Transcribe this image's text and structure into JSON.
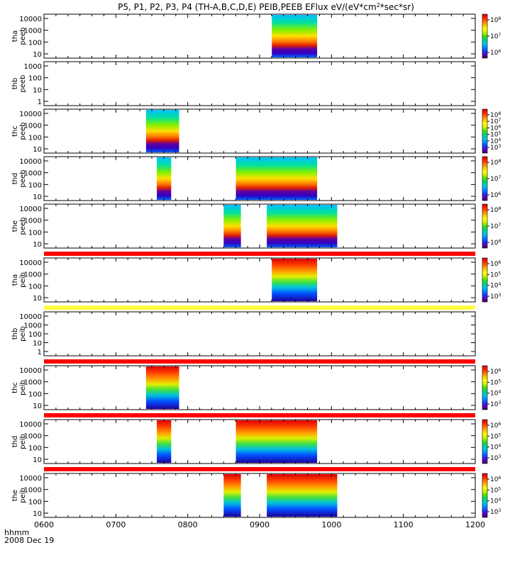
{
  "chart_data": {
    "type": "heatmap",
    "title": "P5, P1, P2, P3, P4 (TH-A,B,C,D,E) PEIB,PEEB EFlux eV/(eV*cm^2*sec*sr)",
    "title_parts": {
      "prefix": "P5, P1, P2, P3, P4 (TH-A,B,C,D,E) PEIB,PEEB EFlux eV/(eV*cm",
      "superscript": "2",
      "suffix": "*sec*sr)"
    },
    "x_axis": {
      "label": "hhmm",
      "date": "2008 Dec 19",
      "ticks": [
        "0600",
        "0700",
        "0800",
        "0900",
        "1000",
        "1100",
        "1200"
      ],
      "range_hours": [
        6,
        12
      ]
    },
    "colormap": [
      "#3a0050",
      "#5a00c8",
      "#1040ff",
      "#0090ff",
      "#00c8e0",
      "#00d080",
      "#40e000",
      "#c8f000",
      "#ffff00",
      "#ffc000",
      "#ff7000",
      "#ff2000",
      "#d00000"
    ],
    "panels": [
      {
        "probe": "tha",
        "product": "peeb",
        "y_ticks": [
          "10000",
          "1000",
          "100",
          "10"
        ],
        "colorbar_ticks": [
          "10^8",
          "10^7",
          "10^6"
        ],
        "intervals": [
          {
            "start": 9.17,
            "end": 9.8
          }
        ],
        "has_colorbar": true
      },
      {
        "probe": "thb",
        "product": "peeb",
        "y_ticks": [
          "1000",
          "100",
          "10",
          "1"
        ],
        "colorbar_ticks": [],
        "intervals": [],
        "has_colorbar": false
      },
      {
        "probe": "thc",
        "product": "peeb",
        "y_ticks": [
          "10000",
          "1000",
          "100",
          "10"
        ],
        "colorbar_ticks": [
          "10^8",
          "10^7",
          "10^6",
          "10^5",
          "10^4",
          "10^3"
        ],
        "intervals": [
          {
            "start": 7.42,
            "end": 7.88
          }
        ],
        "has_colorbar": true
      },
      {
        "probe": "thd",
        "product": "peeb",
        "y_ticks": [
          "10000",
          "1000",
          "100",
          "10"
        ],
        "colorbar_ticks": [
          "10^8",
          "10^7",
          "10^6"
        ],
        "intervals": [
          {
            "start": 7.57,
            "end": 7.77
          },
          {
            "start": 8.67,
            "end": 9.8
          }
        ],
        "has_colorbar": true
      },
      {
        "probe": "the",
        "product": "peeb",
        "y_ticks": [
          "10000",
          "1000",
          "100",
          "10"
        ],
        "colorbar_ticks": [
          "10^8",
          "10^7",
          "10^6"
        ],
        "intervals": [
          {
            "start": 8.5,
            "end": 8.74
          },
          {
            "start": 9.1,
            "end": 10.08
          }
        ],
        "has_colorbar": true
      },
      {
        "probe": "tha",
        "product": "peib",
        "y_ticks": [
          "10000",
          "1000",
          "100",
          "10"
        ],
        "colorbar_ticks": [
          "10^6",
          "10^5",
          "10^4",
          "10^3"
        ],
        "intervals": [
          {
            "start": 9.17,
            "end": 9.8
          }
        ],
        "has_colorbar": true
      },
      {
        "probe": "thb",
        "product": "peib",
        "y_ticks": [
          "10000",
          "1000",
          "100",
          "10",
          "1"
        ],
        "colorbar_ticks": [],
        "intervals": [],
        "has_colorbar": false
      },
      {
        "probe": "thc",
        "product": "peib",
        "y_ticks": [
          "10000",
          "1000",
          "100",
          "10"
        ],
        "colorbar_ticks": [
          "10^6",
          "10^5",
          "10^4",
          "10^3"
        ],
        "intervals": [
          {
            "start": 7.42,
            "end": 7.88
          }
        ],
        "has_colorbar": true
      },
      {
        "probe": "thd",
        "product": "peib",
        "y_ticks": [
          "10000",
          "1000",
          "100",
          "10"
        ],
        "colorbar_ticks": [
          "10^6",
          "10^5",
          "10^4",
          "10^3"
        ],
        "intervals": [
          {
            "start": 7.57,
            "end": 7.77
          },
          {
            "start": 8.67,
            "end": 9.8
          }
        ],
        "has_colorbar": true
      },
      {
        "probe": "the",
        "product": "peib",
        "y_ticks": [
          "10000",
          "1000",
          "100",
          "10"
        ],
        "colorbar_ticks": [
          "10^6",
          "10^5",
          "10^4",
          "10^3"
        ],
        "intervals": [
          {
            "start": 8.5,
            "end": 8.74
          },
          {
            "start": 9.1,
            "end": 10.08
          }
        ],
        "has_colorbar": true
      }
    ],
    "separator_bars": [
      {
        "color": "#ff0000"
      },
      {
        "color": "#ffff40"
      },
      {
        "color": "#ff0000"
      },
      {
        "color": "#ff0000"
      },
      {
        "color": "#ff0000"
      }
    ]
  }
}
